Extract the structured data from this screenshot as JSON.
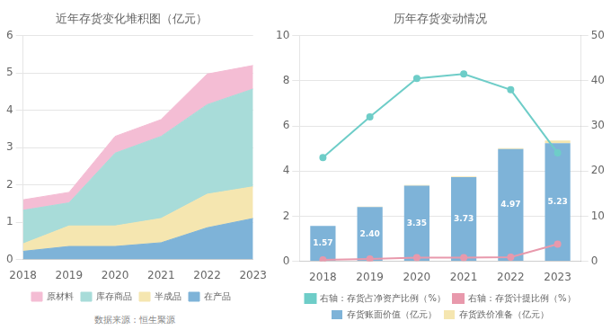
{
  "chart_data": [
    {
      "type": "area",
      "title": "近年存货变化堆积图（亿元）",
      "x": [
        2018,
        2019,
        2020,
        2021,
        2022,
        2023
      ],
      "xlim": [
        2018,
        2023
      ],
      "xticks": [
        2018,
        2019,
        2020,
        2021,
        2022,
        2023
      ],
      "ylim": [
        0,
        6
      ],
      "yticks": [
        0,
        1,
        2,
        3,
        4,
        5,
        6
      ],
      "stacked": true,
      "grid": true,
      "legend": "bottom",
      "annotations": [
        "数据来源：恒生聚源"
      ],
      "series": [
        {
          "name": "在产品",
          "color": "#7eb3d8",
          "values": [
            0.22,
            0.35,
            0.35,
            0.45,
            0.85,
            1.1
          ]
        },
        {
          "name": "半成品",
          "color": "#f5e6b0",
          "values": [
            0.2,
            0.55,
            0.55,
            0.65,
            0.9,
            0.85
          ]
        },
        {
          "name": "库存商品",
          "color": "#a8dcd9",
          "values": [
            0.9,
            0.62,
            1.95,
            2.2,
            2.4,
            2.62
          ]
        },
        {
          "name": "原材料",
          "color": "#f4bdd4",
          "values": [
            0.28,
            0.28,
            0.45,
            0.45,
            0.82,
            0.63
          ]
        }
      ]
    },
    {
      "type": "bar",
      "title": "历年存货变动情况",
      "categories": [
        "2018",
        "2019",
        "2020",
        "2021",
        "2022",
        "2023"
      ],
      "ylim": [
        0,
        10
      ],
      "yticks": [
        0,
        2,
        4,
        6,
        8,
        10
      ],
      "y2lim": [
        0,
        50
      ],
      "y2ticks": [
        0,
        10,
        20,
        30,
        40,
        50
      ],
      "stacked": true,
      "grid": true,
      "legend": "bottom",
      "series": [
        {
          "name": "存货账面价值（亿元）",
          "color": "#7eb3d8",
          "values": [
            1.57,
            2.4,
            3.35,
            3.73,
            4.97,
            5.23
          ],
          "data_labels": true,
          "value_labels": [
            "1.57",
            "2.40",
            "3.35",
            "3.73",
            "4.97",
            "5.23"
          ]
        },
        {
          "name": "存货跌价准备（亿元）",
          "color": "#f5e6b0",
          "values": [
            0.0,
            0.02,
            0.03,
            0.03,
            0.04,
            0.12
          ]
        },
        {
          "name": "右轴：存货占净资产比例（%）",
          "type": "line",
          "axis": "y2",
          "color": "#6ecdc8",
          "marker": "circle",
          "values": [
            23.0,
            32.0,
            40.5,
            41.5,
            38.0,
            24.0
          ]
        },
        {
          "name": "右轴：存货计提比例（%）",
          "type": "line",
          "axis": "y2",
          "color": "#e899ac",
          "marker": "circle",
          "values": [
            0.3,
            0.5,
            0.8,
            0.8,
            0.9,
            3.8
          ]
        }
      ]
    }
  ]
}
